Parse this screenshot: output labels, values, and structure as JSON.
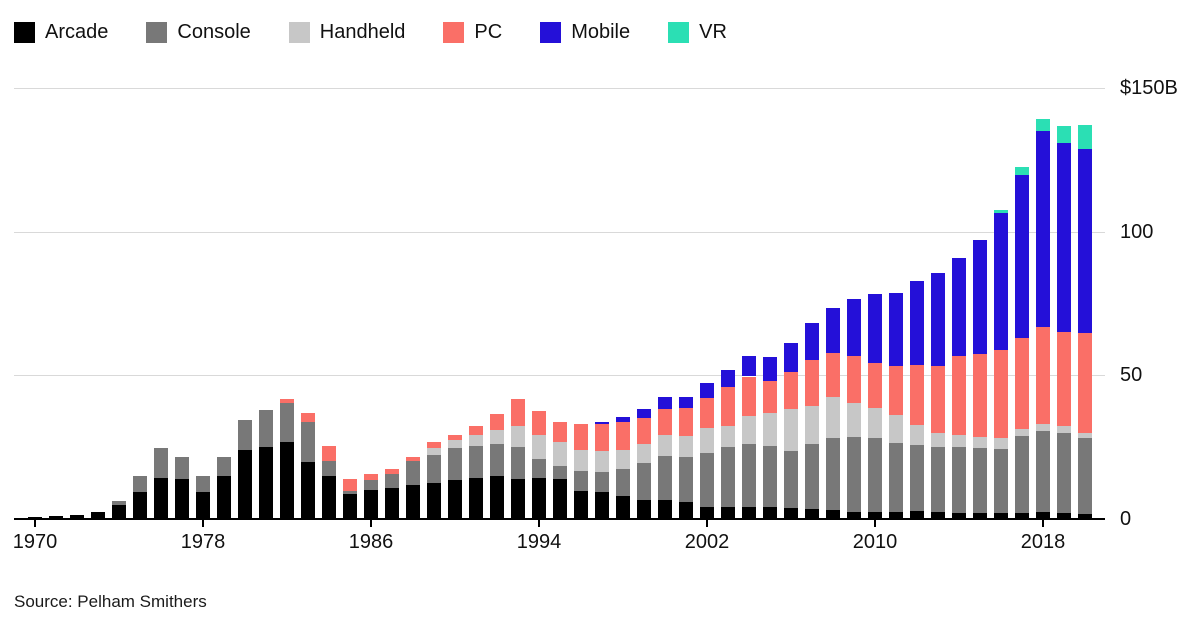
{
  "legend": {
    "items": [
      {
        "label": "Arcade",
        "color": "#000000"
      },
      {
        "label": "Console",
        "color": "#787878"
      },
      {
        "label": "Handheld",
        "color": "#c7c7c7"
      },
      {
        "label": "PC",
        "color": "#fa6f67"
      },
      {
        "label": "Mobile",
        "color": "#2410d8"
      },
      {
        "label": "VR",
        "color": "#2bdfb4"
      }
    ]
  },
  "y_axis": {
    "labels": [
      {
        "text": "$150B",
        "value": 150
      },
      {
        "text": "100",
        "value": 100
      },
      {
        "text": "50",
        "value": 50
      },
      {
        "text": "0",
        "value": 0
      }
    ]
  },
  "x_axis": {
    "ticks": [
      {
        "label": "1970",
        "year": 1970
      },
      {
        "label": "1978",
        "year": 1978
      },
      {
        "label": "1986",
        "year": 1986
      },
      {
        "label": "1994",
        "year": 1994
      },
      {
        "label": "2002",
        "year": 2002
      },
      {
        "label": "2010",
        "year": 2010
      },
      {
        "label": "2018",
        "year": 2018
      }
    ]
  },
  "source": {
    "text": "Source: Pelham Smithers"
  },
  "chart_data": {
    "type": "bar",
    "stacked": true,
    "unit": "billions of US dollars",
    "title": "",
    "xlabel": "",
    "ylabel": "",
    "ylim": [
      0,
      150
    ],
    "y_ticks": [
      0,
      50,
      100,
      150
    ],
    "y_tick_labels": [
      "0",
      "50",
      "100",
      "$150B"
    ],
    "x_tick_years": [
      1970,
      1978,
      1986,
      1994,
      2002,
      2010,
      2018
    ],
    "grid": "horizontal",
    "legend_position": "top-left",
    "source": "Source: Pelham Smithers",
    "categories": [
      1970,
      1971,
      1972,
      1973,
      1974,
      1975,
      1976,
      1977,
      1978,
      1979,
      1980,
      1981,
      1982,
      1983,
      1984,
      1985,
      1986,
      1987,
      1988,
      1989,
      1990,
      1991,
      1992,
      1993,
      1994,
      1995,
      1996,
      1997,
      1998,
      1999,
      2000,
      2001,
      2002,
      2003,
      2004,
      2005,
      2006,
      2007,
      2008,
      2009,
      2010,
      2011,
      2012,
      2013,
      2014,
      2015,
      2016,
      2017,
      2018,
      2019,
      2020
    ],
    "series": [
      {
        "name": "Arcade",
        "color": "#000000",
        "values": [
          0.8,
          1.2,
          1.5,
          2.5,
          5.0,
          9.5,
          14.4,
          14.0,
          9.5,
          15.1,
          24.0,
          25.2,
          26.7,
          19.7,
          15.1,
          8.6,
          10.1,
          10.7,
          11.8,
          12.4,
          13.6,
          14.4,
          15.1,
          13.9,
          14.2,
          13.8,
          9.8,
          9.5,
          8.1,
          6.6,
          6.6,
          6.0,
          4.3,
          4.1,
          4.3,
          4.1,
          3.7,
          3.4,
          3.1,
          2.6,
          2.6,
          2.6,
          2.9,
          2.6,
          2.2,
          2.0,
          2.0,
          2.2,
          2.6,
          2.2,
          1.6
        ]
      },
      {
        "name": "Console",
        "color": "#787878",
        "values": [
          0,
          0,
          0,
          0,
          1.3,
          5.6,
          10.2,
          7.7,
          5.6,
          6.6,
          10.5,
          12.8,
          13.6,
          14.0,
          5.1,
          1.2,
          3.5,
          4.9,
          8.4,
          9.9,
          11.0,
          11.0,
          10.9,
          11.3,
          6.7,
          4.8,
          7.0,
          7.0,
          9.3,
          12.8,
          15.4,
          15.7,
          18.6,
          20.9,
          21.8,
          21.3,
          19.8,
          22.7,
          25.0,
          26.1,
          25.5,
          23.8,
          22.9,
          22.6,
          22.8,
          22.6,
          22.3,
          26.7,
          28.1,
          27.6,
          26.5
        ]
      },
      {
        "name": "Handheld",
        "color": "#c7c7c7",
        "values": [
          0,
          0,
          0,
          0,
          0,
          0,
          0,
          0,
          0,
          0,
          0,
          0,
          0,
          0,
          0,
          0,
          0,
          0,
          0,
          2.5,
          2.9,
          3.9,
          5.0,
          7.3,
          8.4,
          8.1,
          7.3,
          7.2,
          6.6,
          6.6,
          7.2,
          7.3,
          8.7,
          7.2,
          9.8,
          11.6,
          14.7,
          13.3,
          14.5,
          11.8,
          10.4,
          9.8,
          6.9,
          4.9,
          4.3,
          4.1,
          3.8,
          2.3,
          2.3,
          2.4,
          1.7
        ]
      },
      {
        "name": "PC",
        "color": "#fa6f67",
        "values": [
          0,
          0,
          0,
          0,
          0,
          0,
          0,
          0,
          0,
          0,
          0,
          0,
          1.5,
          3.1,
          5.3,
          4.1,
          2.0,
          1.8,
          1.5,
          1.9,
          1.7,
          3.1,
          5.5,
          9.3,
          8.3,
          7.0,
          9.0,
          9.3,
          9.7,
          9.1,
          9.1,
          9.8,
          10.4,
          13.7,
          13.7,
          11.2,
          13.1,
          16.0,
          15.3,
          16.3,
          15.7,
          16.9,
          20.9,
          23.0,
          27.5,
          28.8,
          30.8,
          31.7,
          33.8,
          33.0,
          34.9
        ]
      },
      {
        "name": "Mobile",
        "color": "#2410d8",
        "values": [
          0,
          0,
          0,
          0,
          0,
          0,
          0,
          0,
          0,
          0,
          0,
          0,
          0,
          0,
          0,
          0,
          0,
          0,
          0,
          0,
          0,
          0,
          0,
          0,
          0,
          0,
          0,
          0.7,
          1.9,
          3.3,
          4.0,
          3.8,
          5.5,
          5.8,
          7.2,
          8.3,
          10.1,
          12.8,
          15.5,
          19.7,
          24.2,
          25.7,
          29.1,
          32.5,
          34.1,
          39.7,
          47.5,
          56.7,
          68.2,
          65.7,
          64.2
        ]
      },
      {
        "name": "VR",
        "color": "#2bdfb4",
        "values": [
          0,
          0,
          0,
          0,
          0,
          0,
          0,
          0,
          0,
          0,
          0,
          0,
          0,
          0,
          0,
          0,
          0,
          0,
          0,
          0,
          0,
          0,
          0,
          0,
          0,
          0,
          0,
          0,
          0,
          0,
          0,
          0,
          0,
          0,
          0,
          0,
          0,
          0,
          0,
          0,
          0,
          0,
          0,
          0,
          0,
          0,
          1.2,
          3.0,
          4.3,
          6.0,
          8.1
        ]
      }
    ]
  }
}
